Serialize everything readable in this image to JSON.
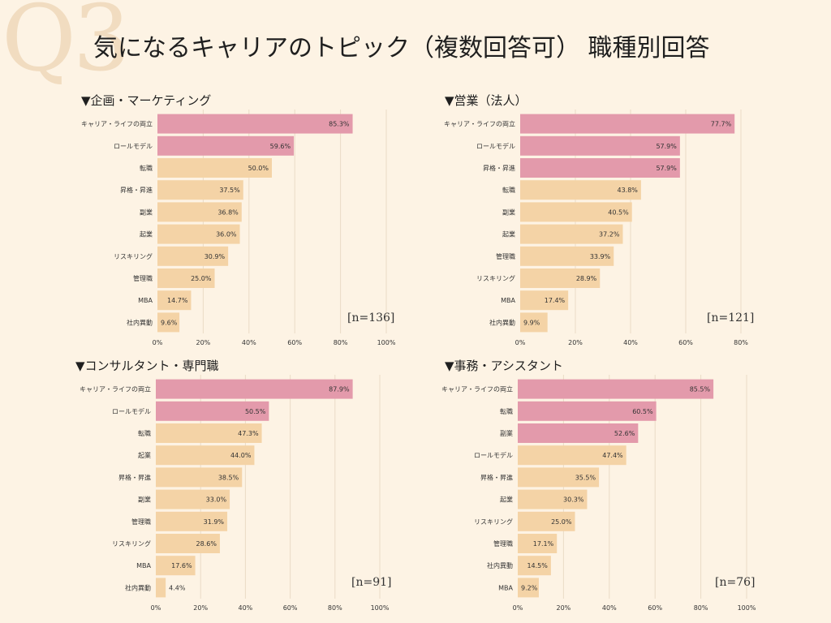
{
  "watermark": "Q3",
  "title": "気になるキャリアのトピック（複数回答可） 職種別回答",
  "colors": {
    "highlight": "#e39aab",
    "normal": "#f4d3a6",
    "grid": "#eadbc6",
    "text": "#333333"
  },
  "chart_data": [
    {
      "type": "bar",
      "title": "▼企画・マーケティング",
      "n_label": "[n=136]",
      "categories": [
        "キャリア・ライフの両立",
        "ロールモデル",
        "転職",
        "昇格・昇進",
        "副業",
        "起業",
        "リスキリング",
        "管理職",
        "MBA",
        "社内異動"
      ],
      "values": [
        85.3,
        59.6,
        50.0,
        37.5,
        36.8,
        36.0,
        30.9,
        25.0,
        14.7,
        9.6
      ],
      "value_labels": [
        "85.3%",
        "59.6%",
        "50.0%",
        "37.5%",
        "36.8%",
        "36.0%",
        "30.9%",
        "25.0%",
        "14.7%",
        "9.6%"
      ],
      "highlight_count": 2,
      "xlim": [
        0,
        100
      ],
      "xticks": [
        "0%",
        "20%",
        "40%",
        "60%",
        "80%",
        "100%"
      ]
    },
    {
      "type": "bar",
      "title": "▼営業（法人）",
      "n_label": "[n=121]",
      "categories": [
        "キャリア・ライフの両立",
        "ロールモデル",
        "昇格・昇進",
        "転職",
        "副業",
        "起業",
        "管理職",
        "リスキリング",
        "MBA",
        "社内異動"
      ],
      "values": [
        77.7,
        57.9,
        57.9,
        43.8,
        40.5,
        37.2,
        33.9,
        28.9,
        17.4,
        9.9
      ],
      "value_labels": [
        "77.7%",
        "57.9%",
        "57.9%",
        "43.8%",
        "40.5%",
        "37.2%",
        "33.9%",
        "28.9%",
        "17.4%",
        "9.9%"
      ],
      "highlight_count": 3,
      "xlim": [
        0,
        80
      ],
      "xticks": [
        "0%",
        "20%",
        "40%",
        "60%",
        "80%"
      ]
    },
    {
      "type": "bar",
      "title": "▼コンサルタント・専門職",
      "n_label": "[n=91]",
      "categories": [
        "キャリア・ライフの両立",
        "ロールモデル",
        "転職",
        "起業",
        "昇格・昇進",
        "副業",
        "管理職",
        "リスキリング",
        "MBA",
        "社内異動"
      ],
      "values": [
        87.9,
        50.5,
        47.3,
        44.0,
        38.5,
        33.0,
        31.9,
        28.6,
        17.6,
        4.4
      ],
      "value_labels": [
        "87.9%",
        "50.5%",
        "47.3%",
        "44.0%",
        "38.5%",
        "33.0%",
        "31.9%",
        "28.6%",
        "17.6%",
        "4.4%"
      ],
      "highlight_count": 2,
      "xlim": [
        0,
        100
      ],
      "xticks": [
        "0%",
        "20%",
        "40%",
        "60%",
        "80%",
        "100%"
      ]
    },
    {
      "type": "bar",
      "title": "▼事務・アシスタント",
      "n_label": "[n=76]",
      "categories": [
        "キャリア・ライフの両立",
        "転職",
        "副業",
        "ロールモデル",
        "昇格・昇進",
        "起業",
        "リスキリング",
        "管理職",
        "社内異動",
        "MBA"
      ],
      "values": [
        85.5,
        60.5,
        52.6,
        47.4,
        35.5,
        30.3,
        25.0,
        17.1,
        14.5,
        9.2
      ],
      "value_labels": [
        "85.5%",
        "60.5%",
        "52.6%",
        "47.4%",
        "35.5%",
        "30.3%",
        "25.0%",
        "17.1%",
        "14.5%",
        "9.2%"
      ],
      "highlight_count": 3,
      "xlim": [
        0,
        100
      ],
      "xticks": [
        "0%",
        "20%",
        "40%",
        "60%",
        "80%",
        "100%"
      ]
    }
  ]
}
